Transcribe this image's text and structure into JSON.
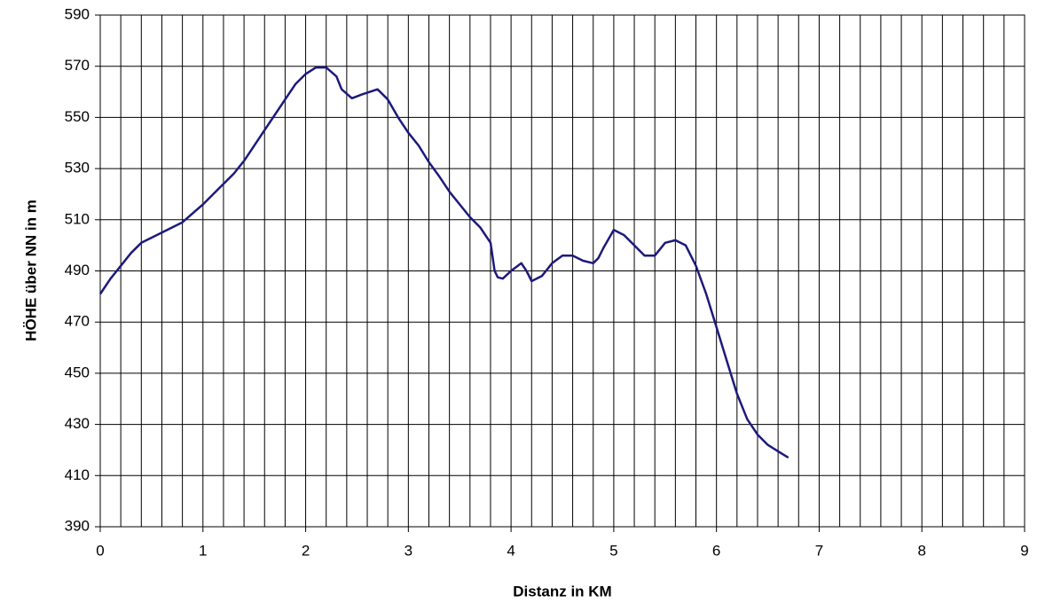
{
  "chart_data": {
    "type": "line",
    "x_label": "Distanz in KM",
    "y_label": "HÖHE über NN in m",
    "xlim": [
      0,
      9
    ],
    "xticks": [
      0,
      1,
      2,
      3,
      4,
      5,
      6,
      7,
      8,
      9
    ],
    "x_gridlines": [
      0,
      0.2,
      0.4,
      0.6,
      0.8,
      1,
      1.2,
      1.4,
      1.6,
      1.8,
      2,
      2.2,
      2.4,
      2.6,
      2.8,
      3,
      3.2,
      3.4,
      3.6,
      3.8,
      4,
      4.2,
      4.4,
      4.6,
      4.8,
      5,
      5.2,
      5.4,
      5.6,
      5.8,
      6,
      6.2,
      6.4,
      6.6,
      6.8,
      7,
      7.2,
      7.4,
      7.6,
      7.8,
      8,
      8.2,
      8.4,
      8.6,
      8.8,
      9
    ],
    "ylim": [
      390,
      590
    ],
    "yticks": [
      390,
      410,
      430,
      450,
      470,
      490,
      510,
      530,
      550,
      570,
      590
    ],
    "grid": true,
    "series": [
      {
        "color": "#1c1a7c",
        "x": [
          0,
          0.1,
          0.2,
          0.3,
          0.4,
          0.5,
          0.6,
          0.7,
          0.8,
          0.9,
          1.0,
          1.1,
          1.2,
          1.3,
          1.4,
          1.5,
          1.6,
          1.7,
          1.8,
          1.9,
          2.0,
          2.1,
          2.2,
          2.3,
          2.35,
          2.45,
          2.55,
          2.7,
          2.8,
          2.9,
          3.0,
          3.1,
          3.2,
          3.3,
          3.4,
          3.5,
          3.6,
          3.7,
          3.8,
          3.84,
          3.87,
          3.92,
          4.0,
          4.1,
          4.15,
          4.2,
          4.3,
          4.4,
          4.5,
          4.6,
          4.7,
          4.8,
          4.85,
          4.9,
          5.0,
          5.1,
          5.2,
          5.3,
          5.4,
          5.5,
          5.6,
          5.7,
          5.8,
          5.9,
          6.0,
          6.1,
          6.2,
          6.3,
          6.4,
          6.5,
          6.6,
          6.7
        ],
        "values": [
          481,
          487,
          492,
          497,
          501,
          503,
          505,
          507,
          509,
          512.5,
          516,
          520,
          524,
          528,
          533,
          539,
          545,
          551,
          557,
          563,
          567,
          569.5,
          569.5,
          566,
          561,
          557.5,
          559,
          561,
          557,
          550,
          544,
          539,
          532.5,
          527,
          521,
          516,
          511,
          507,
          501,
          490,
          487.5,
          487,
          490,
          493,
          490,
          486,
          488,
          493,
          496,
          496,
          494,
          493,
          495,
          499,
          506,
          504,
          500,
          496,
          496,
          501,
          502,
          500,
          492,
          481,
          468,
          455,
          442,
          432,
          426,
          422,
          419.5,
          417
        ]
      }
    ]
  }
}
